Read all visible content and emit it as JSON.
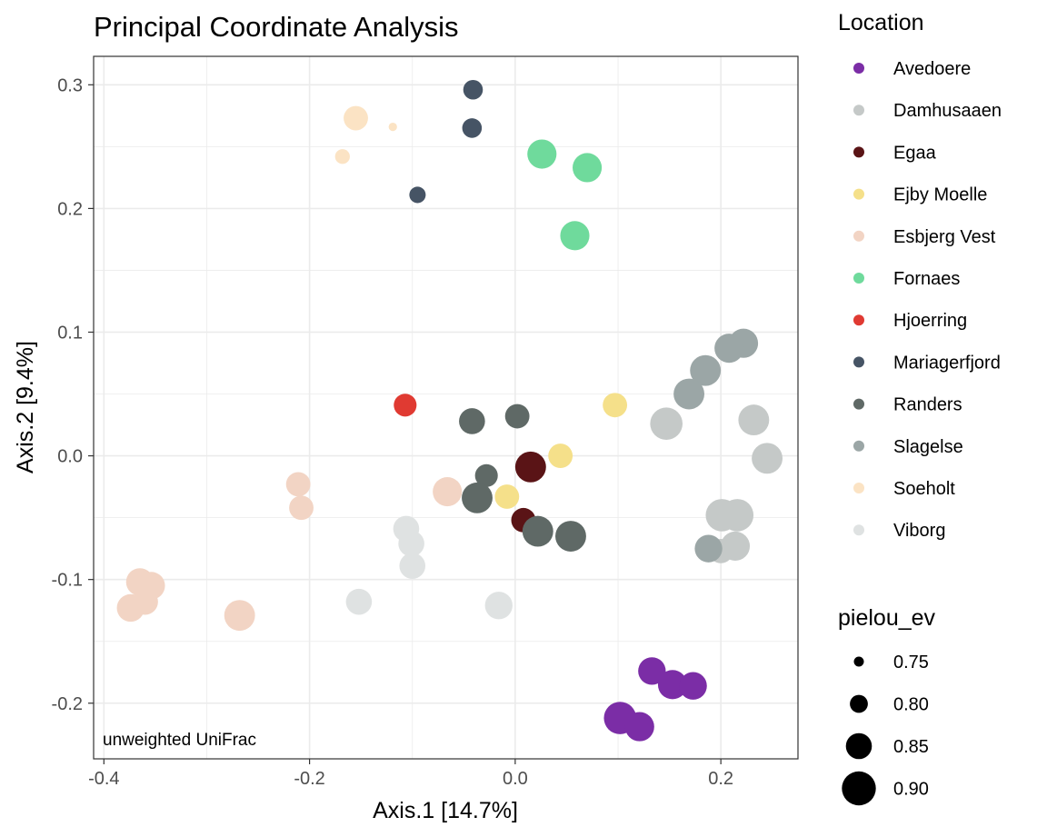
{
  "chart_data": {
    "type": "scatter",
    "title": "Principal Coordinate Analysis",
    "xlabel": "Axis.1   [14.7%]",
    "ylabel": "Axis.2   [9.4%]",
    "annotation": "unweighted UniFrac",
    "xlim": [
      -0.41,
      0.275
    ],
    "ylim": [
      -0.245,
      0.323
    ],
    "x_ticks": [
      -0.4,
      -0.2,
      0.0,
      0.2
    ],
    "x_tick_labels": [
      "-0.4",
      "-0.2",
      "0.0",
      "0.2"
    ],
    "y_ticks": [
      -0.2,
      -0.1,
      0.0,
      0.1,
      0.2,
      0.3
    ],
    "y_tick_labels": [
      "-0.2",
      "-0.1",
      "0.0",
      "0.1",
      "0.2",
      "0.3"
    ],
    "grid": true,
    "legend_placement": "right",
    "color_legend": {
      "title": "Location",
      "entries": [
        {
          "name": "Avedoere",
          "color": "#7b2da6"
        },
        {
          "name": "Damhusaaen",
          "color": "#c5c9c8"
        },
        {
          "name": "Egaa",
          "color": "#5a1416"
        },
        {
          "name": "Ejby Moelle",
          "color": "#f5e08a"
        },
        {
          "name": "Esbjerg Vest",
          "color": "#f2d4c4"
        },
        {
          "name": "Fornaes",
          "color": "#6fda9c"
        },
        {
          "name": "Hjoerring",
          "color": "#e03a32"
        },
        {
          "name": "Mariagerfjord",
          "color": "#465465"
        },
        {
          "name": "Randers",
          "color": "#5f6966"
        },
        {
          "name": "Slagelse",
          "color": "#9ba6a6"
        },
        {
          "name": "Soeholt",
          "color": "#fbe3c4"
        },
        {
          "name": "Viborg",
          "color": "#dfe2e2"
        }
      ]
    },
    "size_legend": {
      "title": "pielou_ev",
      "entries": [
        {
          "label": "0.75",
          "value": 0.75
        },
        {
          "label": "0.80",
          "value": 0.8
        },
        {
          "label": "0.85",
          "value": 0.85
        },
        {
          "label": "0.90",
          "value": 0.9
        }
      ]
    },
    "series": [
      {
        "name": "Avedoere",
        "points": [
          [
            0.133,
            -0.174,
            0.86
          ],
          [
            0.153,
            -0.185,
            0.87
          ],
          [
            0.173,
            -0.186,
            0.86
          ],
          [
            0.102,
            -0.212,
            0.89
          ],
          [
            0.121,
            -0.219,
            0.87
          ]
        ]
      },
      {
        "name": "Damhusaaen",
        "points": [
          [
            0.147,
            0.026,
            0.89
          ],
          [
            0.232,
            0.029,
            0.88
          ],
          [
            0.245,
            -0.002,
            0.88
          ],
          [
            0.201,
            -0.048,
            0.89
          ],
          [
            0.216,
            -0.048,
            0.89
          ],
          [
            0.214,
            -0.073,
            0.87
          ],
          [
            0.2,
            -0.077,
            0.84
          ]
        ]
      },
      {
        "name": "Egaa",
        "points": [
          [
            0.015,
            -0.009,
            0.88
          ],
          [
            0.008,
            -0.052,
            0.84
          ]
        ]
      },
      {
        "name": "Ejby Moelle",
        "points": [
          [
            0.097,
            0.041,
            0.84
          ],
          [
            0.044,
            0.0,
            0.84
          ],
          [
            -0.008,
            -0.033,
            0.84
          ]
        ]
      },
      {
        "name": "Esbjerg Vest",
        "points": [
          [
            -0.211,
            -0.023,
            0.84
          ],
          [
            -0.208,
            -0.042,
            0.84
          ],
          [
            -0.066,
            -0.029,
            0.87
          ],
          [
            -0.365,
            -0.102,
            0.86
          ],
          [
            -0.354,
            -0.105,
            0.86
          ],
          [
            -0.36,
            -0.118,
            0.85
          ],
          [
            -0.374,
            -0.123,
            0.86
          ],
          [
            -0.268,
            -0.129,
            0.88
          ]
        ]
      },
      {
        "name": "Fornaes",
        "points": [
          [
            0.026,
            0.244,
            0.87
          ],
          [
            0.07,
            0.233,
            0.87
          ],
          [
            0.058,
            0.178,
            0.87
          ]
        ]
      },
      {
        "name": "Hjoerring",
        "points": [
          [
            -0.107,
            0.041,
            0.83
          ]
        ]
      },
      {
        "name": "Mariagerfjord",
        "points": [
          [
            -0.041,
            0.296,
            0.81
          ],
          [
            -0.042,
            0.265,
            0.81
          ],
          [
            -0.095,
            0.211,
            0.79
          ]
        ]
      },
      {
        "name": "Randers",
        "points": [
          [
            -0.042,
            0.028,
            0.85
          ],
          [
            0.002,
            0.032,
            0.84
          ],
          [
            -0.028,
            -0.016,
            0.83
          ],
          [
            -0.037,
            -0.034,
            0.88
          ],
          [
            0.022,
            -0.061,
            0.88
          ],
          [
            0.054,
            -0.065,
            0.88
          ]
        ]
      },
      {
        "name": "Slagelse",
        "points": [
          [
            0.222,
            0.091,
            0.87
          ],
          [
            0.208,
            0.087,
            0.87
          ],
          [
            0.185,
            0.069,
            0.88
          ],
          [
            0.169,
            0.05,
            0.88
          ],
          [
            0.188,
            -0.075,
            0.86
          ]
        ]
      },
      {
        "name": "Soeholt",
        "points": [
          [
            -0.155,
            0.273,
            0.84
          ],
          [
            -0.119,
            0.266,
            0.74
          ],
          [
            -0.168,
            0.242,
            0.78
          ]
        ]
      },
      {
        "name": "Viborg",
        "points": [
          [
            -0.106,
            -0.059,
            0.85
          ],
          [
            -0.101,
            -0.071,
            0.85
          ],
          [
            -0.1,
            -0.089,
            0.85
          ],
          [
            -0.152,
            -0.118,
            0.85
          ],
          [
            -0.016,
            -0.121,
            0.86
          ]
        ]
      }
    ]
  }
}
